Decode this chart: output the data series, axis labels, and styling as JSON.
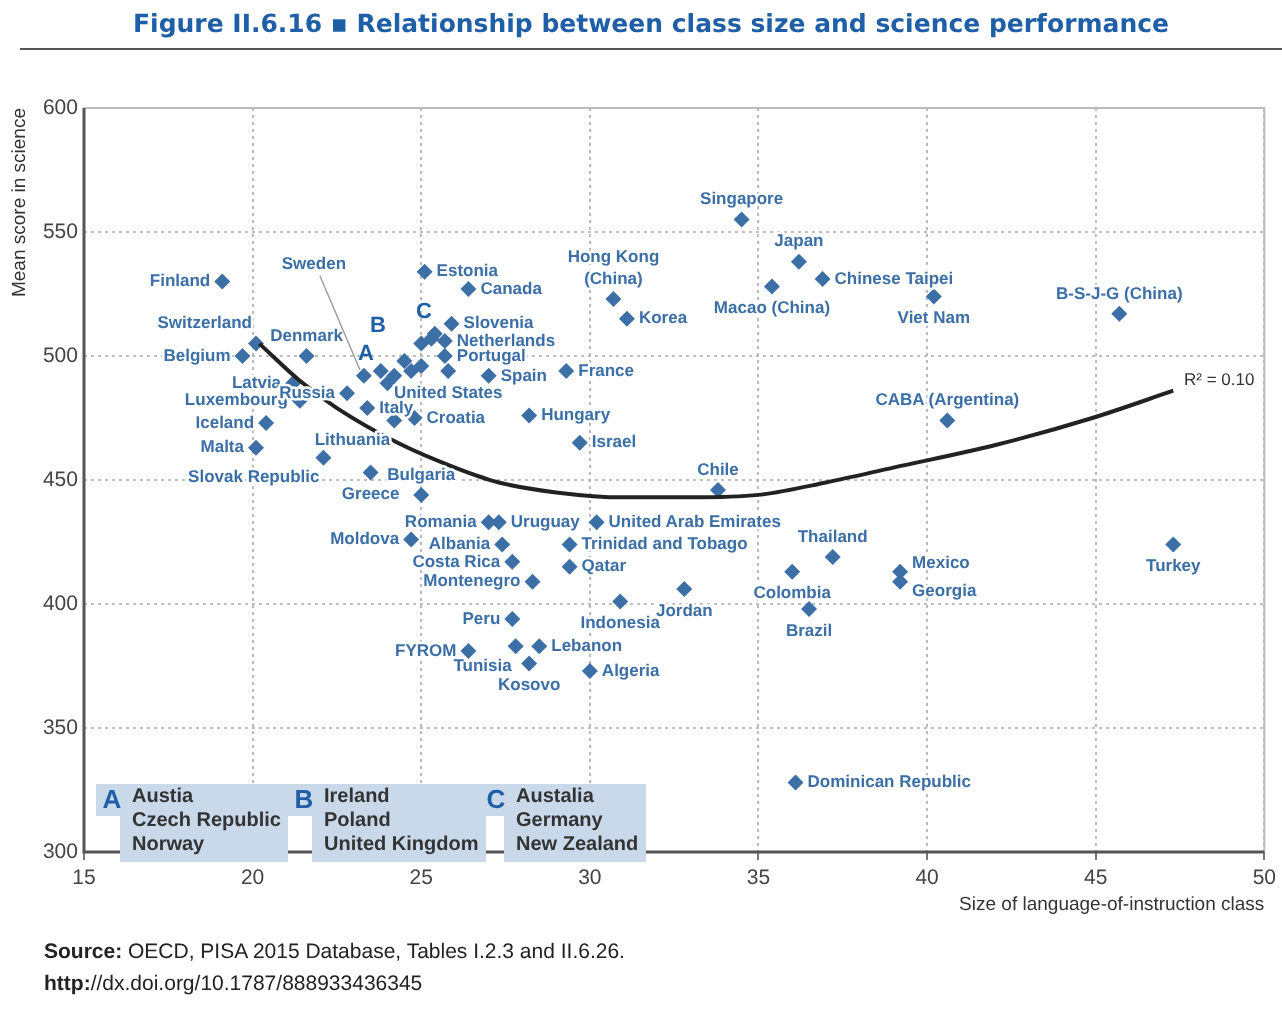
{
  "chart_data": {
    "type": "scatter",
    "title": "Figure II.6.16 ▪ Relationship between class size and science performance",
    "xlabel": "Size of language-of-instruction class",
    "ylabel": "Mean score in science",
    "xlim": [
      15,
      50
    ],
    "xticks": [
      15,
      20,
      25,
      30,
      35,
      40,
      45,
      50
    ],
    "ylim": [
      300,
      600
    ],
    "yticks": [
      300,
      350,
      400,
      450,
      500,
      550,
      600
    ],
    "grid": true,
    "legend": false,
    "marker": "diamond",
    "series": [
      {
        "color": "#3c6fa6",
        "x": [
          19.1,
          20.1,
          19.7,
          21.6,
          21.2,
          21.4,
          20.4,
          22.1,
          23.5,
          23.3,
          23.4,
          25.1,
          26.4,
          25.9,
          25.7,
          25.7,
          25.8,
          27.0,
          29.3,
          28.2,
          29.7,
          31.1,
          36.2,
          33.8,
          39.2,
          47.3,
          23.8,
          24.0,
          24.2,
          24.5,
          24.7,
          25.0,
          25.0,
          25.3,
          25.4
        ],
        "values": [
          530,
          505,
          500,
          500,
          489,
          482,
          473,
          459,
          453,
          492,
          479,
          534,
          527,
          513,
          506,
          500,
          494,
          492,
          494,
          476,
          465,
          515,
          538,
          446,
          413,
          424,
          494,
          489,
          492,
          498,
          494,
          496,
          505,
          507,
          509
        ],
        "value_labels": [
          "Finland",
          "Switzerland",
          "Belgium",
          "Denmark",
          "Latvia",
          "Luxembourg",
          "Iceland",
          "Slovak Republic",
          "Greece",
          "Sweden",
          "Italy",
          "Estonia",
          "Canada",
          "Slovenia",
          "Netherlands",
          "Portugal",
          "United States",
          "Spain",
          "France",
          "Hungary",
          "Israel",
          "Korea",
          "Japan",
          "Chile",
          "Mexico",
          "Turkey",
          null,
          null,
          null,
          null,
          null,
          null,
          null,
          null,
          null
        ]
      },
      {
        "color": "#3c6fa6",
        "x": [
          22.8,
          20.1,
          24.2,
          24.8,
          25.0,
          30.7,
          34.5,
          35.4,
          36.9,
          40.2,
          45.7,
          40.6,
          27.3,
          27.0,
          27.4,
          24.7,
          27.7,
          28.3,
          30.2,
          29.4,
          29.4,
          30.9,
          32.8,
          27.7,
          28.5,
          26.4,
          27.8,
          28.2,
          30.0,
          37.2,
          36.0,
          36.5,
          39.2,
          36.1
        ],
        "values": [
          485,
          463,
          474,
          475,
          444,
          523,
          555,
          528,
          531,
          524,
          517,
          474,
          433,
          433,
          424,
          426,
          417,
          409,
          433,
          424,
          415,
          401,
          406,
          394,
          383,
          381,
          383,
          376,
          373,
          419,
          413,
          398,
          409,
          328
        ],
        "value_labels": [
          "Russia",
          "Malta",
          "Lithuania",
          "Croatia",
          "Bulgaria",
          "Hong Kong (China)",
          "Singapore",
          "Macao (China)",
          "Chinese Taipei",
          "Viet Nam",
          "B-S-J-G (China)",
          "CABA (Argentina)",
          "Uruguay",
          "Romania",
          "Albania",
          "Moldova",
          "Costa Rica",
          "Montenegro",
          "United Arab Emirates",
          "Trinidad and Tobago",
          "Qatar",
          "Indonesia",
          "Jordan",
          "Peru",
          "Lebanon",
          "FYROM",
          "Tunisia",
          "Kosovo",
          "Algeria",
          "Thailand",
          "Colombia",
          "Brazil",
          "Georgia",
          "Dominican Republic"
        ]
      },
      {
        "type": "line",
        "marker": "none",
        "color": "#222222",
        "x": [
          20.2,
          21.4,
          22.5,
          24.3,
          26,
          27.3,
          29,
          31,
          33,
          35,
          37,
          39,
          42,
          44.9,
          47.3
        ],
        "values": [
          505,
          490,
          479,
          465,
          455,
          449,
          445,
          443,
          443,
          444,
          449,
          455,
          464,
          475,
          486
        ]
      }
    ],
    "annotations": [
      {
        "text": "R² = 0.10",
        "x": 47.5,
        "y": 490
      },
      "A",
      "B",
      "C",
      "A\nAustia\nCzech Republic\nNorway",
      "B\nIreland\nPoland\nUnited Kingdom",
      "C\nAustalia\nGermany\nNew Zealand",
      "Source: OECD, PISA 2015 Database, Tables I.2.3 and II.6.26.",
      "http://dx.doi.org/10.1787/888933436345"
    ]
  }
}
